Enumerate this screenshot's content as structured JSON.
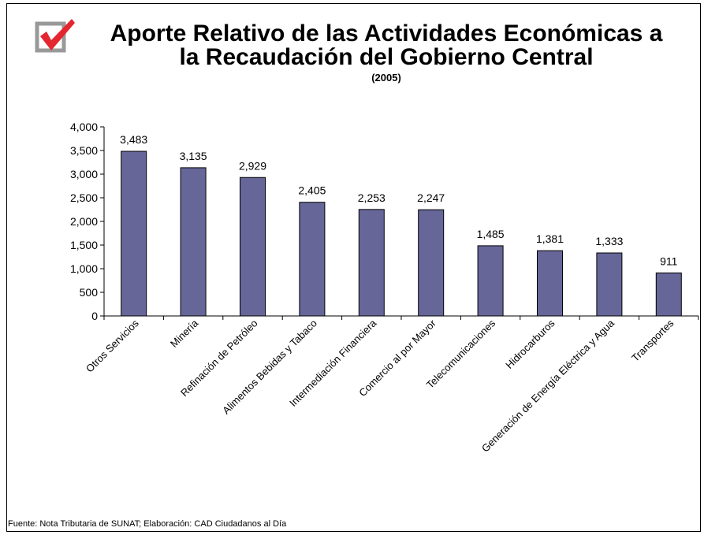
{
  "header": {
    "title_line1": "Aporte Relativo de las Actividades Económicas a",
    "title_line2": "la Recaudación del Gobierno Central",
    "subtitle": "(2005)"
  },
  "footer": {
    "source": "Fuente: Nota Tributaria de SUNAT; Elaboración: CAD Ciudadanos al Día"
  },
  "logo": {
    "icon": "checkbox-check-icon",
    "check_color": "#e3262f",
    "box_color": "#999999"
  },
  "chart_data": {
    "type": "bar",
    "title": "Aporte Relativo de las Actividades Económicas a la Recaudación del Gobierno Central",
    "subtitle": "(2005)",
    "xlabel": "",
    "ylabel": "",
    "categories": [
      "Otros Servicios",
      "Minería",
      "Refinación de Petróleo",
      "Alimentos Bebidas y Tabaco",
      "Intermediación Financiera",
      "Comercio al por Mayor",
      "Telecomunicaciones",
      "Hidrocarburos",
      "Generación de Energía Eléctrica y Agua",
      "Transportes"
    ],
    "values": [
      3483,
      3135,
      2929,
      2405,
      2253,
      2247,
      1485,
      1381,
      1333,
      911
    ],
    "value_labels": [
      "3,483",
      "3,135",
      "2,929",
      "2,405",
      "2,253",
      "2,247",
      "1,485",
      "1,381",
      "1,333",
      "911"
    ],
    "ylim": [
      0,
      4000
    ],
    "yticks": [
      0,
      500,
      1000,
      1500,
      2000,
      2500,
      3000,
      3500,
      4000
    ],
    "ytick_labels": [
      "0",
      "500",
      "1,000",
      "1,500",
      "2,000",
      "2,500",
      "3,000",
      "3,500",
      "4,000"
    ],
    "bar_color": "#666699",
    "grid": false,
    "legend": "none"
  }
}
